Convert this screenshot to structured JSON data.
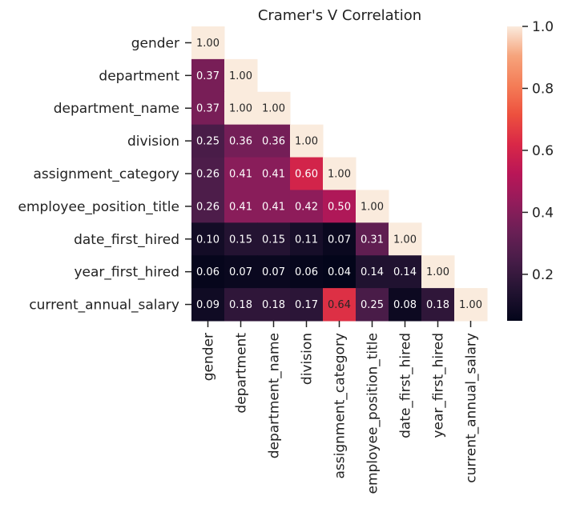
{
  "chart_data": {
    "type": "heatmap",
    "title": "Cramer's V Correlation",
    "labels": [
      "gender",
      "department",
      "department_name",
      "division",
      "assignment_category",
      "employee_position_title",
      "date_first_hired",
      "year_first_hired",
      "current_annual_salary"
    ],
    "matrix_lower": [
      [
        1.0
      ],
      [
        0.37,
        1.0
      ],
      [
        0.37,
        1.0,
        1.0
      ],
      [
        0.25,
        0.36,
        0.36,
        1.0
      ],
      [
        0.26,
        0.41,
        0.41,
        0.6,
        1.0
      ],
      [
        0.26,
        0.41,
        0.41,
        0.42,
        0.5,
        1.0
      ],
      [
        0.1,
        0.15,
        0.15,
        0.11,
        0.07,
        0.31,
        1.0
      ],
      [
        0.06,
        0.07,
        0.07,
        0.06,
        0.04,
        0.14,
        0.14,
        1.0
      ],
      [
        0.09,
        0.18,
        0.18,
        0.17,
        0.64,
        0.25,
        0.08,
        0.18,
        1.0
      ]
    ],
    "mask": "upper triangle",
    "colormap": "rocket",
    "colorbar": {
      "ticks": [
        "0.2",
        "0.4",
        "0.6",
        "0.8",
        "1.0"
      ],
      "range": [
        0.05,
        1.0
      ]
    },
    "annotation_format": "0.00"
  }
}
